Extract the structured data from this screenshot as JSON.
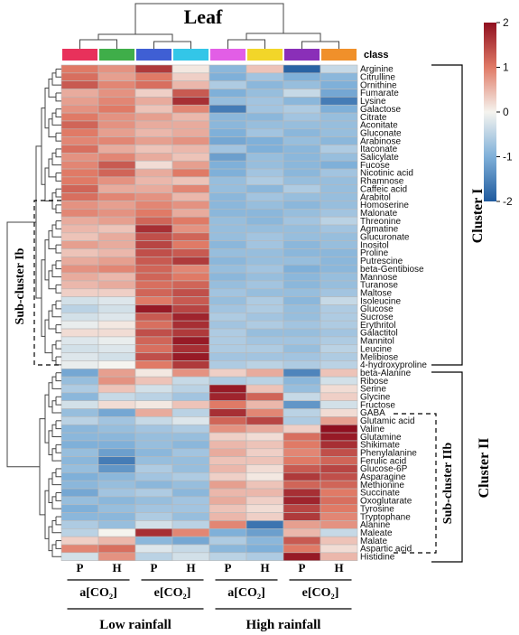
{
  "chart_data": {
    "type": "heatmap",
    "title": "Leaf",
    "class_label": "class",
    "class_colors": [
      "#e8315b",
      "#3fae49",
      "#3f5fd4",
      "#33c6e8",
      "#e25ee6",
      "#f2d629",
      "#8a2fb8",
      "#f0902a"
    ],
    "rows": [
      "Arginine",
      "Citrulline",
      "Ornithine",
      "Fumarate",
      "Lysine",
      "Galactose",
      "Citrate",
      "Aconitate",
      "Gluconate",
      "Arabinose",
      "Itaconate",
      "Salicylate",
      "Fucose",
      "Nicotinic acid",
      "Rhamnose",
      "Caffeic acid",
      "Arabitol",
      "Homoserine",
      "Malonate",
      "Threonine",
      "Agmatine",
      "Glucuronate",
      "Inositol",
      "Proline",
      "Putrescine",
      "beta-Gentibiose",
      "Mannose",
      "Turanose",
      "Maltose",
      "Isoleucine",
      "Glucose",
      "Sucrose",
      "Erythritol",
      "Galactitol",
      "Mannitol",
      "Leucine",
      "Melibiose",
      "4-hydroxyproline",
      "beta-Alanine",
      "Ribose",
      "Serine",
      "Glycine",
      "Fructose",
      "GABA",
      "Glutamic acid",
      "Valine",
      "Glutamine",
      "Shikimate",
      "Phenylalanine",
      "Ferulic acid",
      "Glucose-6P",
      "Asparagine",
      "Methionine",
      "Succinate",
      "Oxoglutarate",
      "Tyrosine",
      "Tryptophane",
      "Alanine",
      "Maleate",
      "Malate",
      "Aspartic acid",
      "Histidine"
    ],
    "values": [
      [
        1.0,
        0.8,
        1.6,
        0.1,
        -0.9,
        0.4,
        -1.9,
        -0.4
      ],
      [
        1.1,
        0.7,
        1.0,
        0.3,
        -1.0,
        -0.7,
        -1.0,
        -0.9
      ],
      [
        1.3,
        0.9,
        1.1,
        0.5,
        -0.6,
        -0.9,
        -0.8,
        -1.0
      ],
      [
        0.6,
        0.8,
        0.3,
        1.3,
        -1.0,
        -0.8,
        -0.4,
        -1.1
      ],
      [
        0.7,
        0.9,
        0.6,
        1.7,
        -0.8,
        -0.7,
        -0.9,
        -1.6
      ],
      [
        0.8,
        1.0,
        0.4,
        0.9,
        -1.6,
        -0.7,
        -0.6,
        -1.0
      ],
      [
        1.0,
        0.8,
        0.7,
        0.5,
        -0.9,
        -0.9,
        -0.7,
        -0.8
      ],
      [
        1.2,
        0.8,
        0.6,
        0.6,
        -0.9,
        -0.8,
        -0.8,
        -0.8
      ],
      [
        1.0,
        0.7,
        0.5,
        0.6,
        -1.0,
        -0.7,
        -0.9,
        -0.8
      ],
      [
        0.9,
        0.9,
        0.7,
        0.8,
        -1.1,
        -1.0,
        -0.8,
        -0.9
      ],
      [
        1.1,
        0.6,
        0.4,
        0.5,
        -0.7,
        -1.0,
        -0.9,
        -0.6
      ],
      [
        0.8,
        0.9,
        0.6,
        0.4,
        -1.2,
        -0.8,
        -0.9,
        -0.8
      ],
      [
        0.9,
        1.3,
        0.2,
        0.7,
        -1.0,
        -0.8,
        -0.9,
        -1.0
      ],
      [
        1.0,
        1.2,
        0.6,
        1.0,
        -1.0,
        -0.7,
        -0.9,
        -0.7
      ],
      [
        1.0,
        0.8,
        0.5,
        0.4,
        -0.8,
        -0.6,
        -0.8,
        -0.8
      ],
      [
        1.2,
        0.6,
        0.6,
        0.9,
        -0.8,
        -0.9,
        -0.6,
        -0.8
      ],
      [
        1.1,
        0.9,
        0.8,
        0.5,
        -0.9,
        -0.7,
        -0.8,
        -0.8
      ],
      [
        0.8,
        0.7,
        0.9,
        0.8,
        -0.9,
        -0.8,
        -0.9,
        -0.8
      ],
      [
        0.9,
        0.8,
        1.0,
        0.6,
        -0.9,
        -0.9,
        -0.8,
        -0.7
      ],
      [
        0.6,
        0.7,
        1.2,
        1.0,
        -0.8,
        -0.9,
        -0.7,
        -0.5
      ],
      [
        0.5,
        0.4,
        1.7,
        0.8,
        -0.8,
        -0.8,
        -0.8,
        -0.7
      ],
      [
        0.4,
        0.6,
        1.4,
        1.2,
        -0.8,
        -0.7,
        -0.8,
        -0.8
      ],
      [
        0.7,
        0.6,
        1.5,
        1.0,
        -0.9,
        -0.7,
        -0.9,
        -0.8
      ],
      [
        0.4,
        0.5,
        1.4,
        1.3,
        -0.8,
        -0.8,
        -0.9,
        -0.9
      ],
      [
        0.6,
        0.7,
        1.3,
        1.6,
        -0.9,
        -0.8,
        -0.8,
        -0.9
      ],
      [
        0.8,
        0.9,
        1.2,
        0.9,
        -0.8,
        -0.7,
        -1.0,
        -0.9
      ],
      [
        0.6,
        0.5,
        1.2,
        1.0,
        -0.9,
        -0.8,
        -0.9,
        -0.8
      ],
      [
        0.5,
        0.6,
        1.1,
        1.2,
        -0.8,
        -0.7,
        -0.9,
        -0.8
      ],
      [
        0.3,
        0.3,
        1.2,
        1.4,
        -0.7,
        -0.8,
        -0.8,
        -0.7
      ],
      [
        -0.3,
        -0.2,
        1.0,
        1.3,
        -0.8,
        -0.6,
        -0.9,
        -0.4
      ],
      [
        -0.5,
        -0.3,
        1.9,
        1.5,
        -0.7,
        -0.6,
        -0.8,
        -0.6
      ],
      [
        -0.3,
        -0.2,
        1.3,
        1.8,
        -0.6,
        -0.7,
        -0.8,
        -0.6
      ],
      [
        -0.1,
        0.1,
        1.1,
        1.7,
        -0.7,
        -0.6,
        -0.7,
        -0.6
      ],
      [
        0.2,
        0.2,
        1.4,
        1.6,
        -0.6,
        -0.8,
        -0.8,
        -0.7
      ],
      [
        -0.2,
        -0.1,
        1.2,
        1.9,
        -0.6,
        -0.7,
        -0.7,
        -0.6
      ],
      [
        -0.3,
        -0.2,
        1.1,
        1.7,
        -0.6,
        -0.6,
        -0.8,
        -0.5
      ],
      [
        -0.2,
        -0.3,
        1.4,
        1.9,
        -0.7,
        -0.7,
        -0.7,
        -0.6
      ],
      [
        -0.1,
        0.0,
        1.0,
        1.6,
        -0.6,
        -0.5,
        -0.6,
        -0.5
      ],
      [
        -1.1,
        0.7,
        0.1,
        0.8,
        0.3,
        0.6,
        -1.5,
        0.4
      ],
      [
        -0.8,
        0.8,
        0.4,
        -0.4,
        -0.6,
        -0.5,
        -0.9,
        -0.3
      ],
      [
        -0.6,
        0.4,
        -0.3,
        -0.5,
        1.9,
        0.4,
        -0.8,
        0.2
      ],
      [
        -0.9,
        -0.4,
        -0.5,
        -0.7,
        1.8,
        1.2,
        -0.4,
        0.3
      ],
      [
        -0.3,
        0.2,
        0.1,
        0.4,
        1.0,
        0.5,
        -1.3,
        -0.3
      ],
      [
        -0.8,
        -1.1,
        0.6,
        -0.5,
        1.7,
        0.9,
        -0.5,
        0.2
      ],
      [
        -0.5,
        -0.7,
        -0.4,
        -0.2,
        1.2,
        1.5,
        -0.6,
        0.7
      ],
      [
        -0.9,
        -0.8,
        -0.7,
        -0.6,
        0.8,
        0.6,
        0.3,
        2.0
      ],
      [
        -0.9,
        -0.9,
        -0.8,
        -0.8,
        0.3,
        0.2,
        1.1,
        1.9
      ],
      [
        -1.0,
        -1.0,
        -0.8,
        -0.9,
        0.5,
        0.4,
        1.0,
        1.7
      ],
      [
        -0.8,
        -1.2,
        -0.9,
        -0.7,
        0.6,
        0.3,
        0.9,
        1.4
      ],
      [
        -0.9,
        -1.6,
        -0.8,
        -0.8,
        0.4,
        0.4,
        1.0,
        1.2
      ],
      [
        -0.8,
        -1.3,
        -0.6,
        -0.8,
        0.5,
        0.2,
        1.3,
        1.5
      ],
      [
        -1.0,
        -0.9,
        -0.7,
        -0.6,
        0.3,
        0.1,
        1.6,
        1.4
      ],
      [
        -0.9,
        -0.8,
        -0.9,
        -0.8,
        0.7,
        0.4,
        1.2,
        1.2
      ],
      [
        -1.1,
        -0.7,
        -0.6,
        -0.9,
        0.5,
        0.5,
        1.7,
        1.0
      ],
      [
        -0.8,
        -0.9,
        -0.8,
        -0.7,
        0.6,
        0.3,
        1.8,
        1.1
      ],
      [
        -1.0,
        -0.8,
        -0.7,
        -0.7,
        0.4,
        0.2,
        1.5,
        1.0
      ],
      [
        -0.9,
        -0.9,
        -0.6,
        -0.8,
        0.5,
        0.3,
        1.6,
        0.9
      ],
      [
        -0.6,
        -0.8,
        -0.3,
        -0.5,
        0.9,
        -1.7,
        0.7,
        0.8
      ],
      [
        -0.5,
        0.0,
        1.7,
        0.9,
        -1.0,
        -1.2,
        0.5,
        -0.4
      ],
      [
        0.3,
        0.5,
        -0.9,
        -1.1,
        -0.6,
        -0.9,
        1.3,
        0.4
      ],
      [
        0.9,
        1.1,
        -0.2,
        -0.4,
        -0.9,
        -1.0,
        1.0,
        0.2
      ],
      [
        -0.3,
        0.8,
        -0.5,
        -0.3,
        -0.5,
        -0.6,
        1.9,
        0.5
      ]
    ],
    "colorbar": {
      "min": -2,
      "max": 2,
      "ticks": [
        "2",
        "1",
        "0",
        "-1",
        "-2"
      ],
      "low_color": "#1f5a9e",
      "mid_color": "#f5f4ef",
      "high_color": "#8f0f1f"
    },
    "bottom_labels": {
      "ph": [
        "P",
        "H",
        "P",
        "H",
        "P",
        "H",
        "P",
        "H"
      ],
      "co2": [
        "a[CO₂]",
        "e[CO₂]",
        "a[CO₂]",
        "e[CO₂]"
      ],
      "rainfall": [
        "Low rainfall",
        "High rainfall"
      ]
    },
    "annotations": {
      "cluster_1": "Cluster I",
      "cluster_2": "Cluster II",
      "sub_cluster_1b": "Sub-cluster Ib",
      "sub_cluster_2b": "Sub-cluster IIb"
    }
  }
}
